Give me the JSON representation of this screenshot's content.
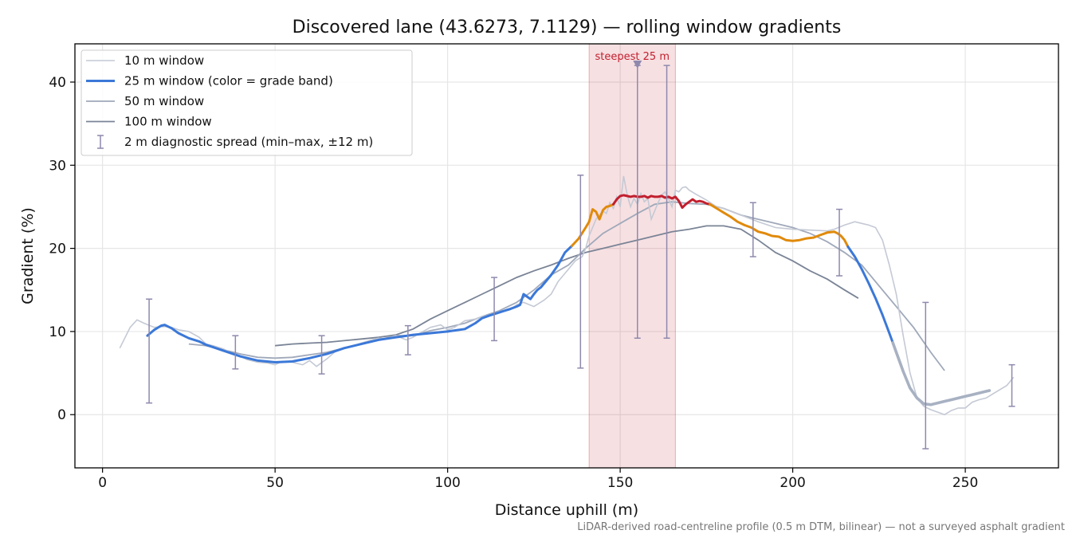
{
  "chart_data": {
    "type": "line",
    "title": "Discovered lane (43.6273, 7.1129) — rolling window gradients",
    "xlabel": "Distance uphill (m)",
    "ylabel": "Gradient (%)",
    "xlim": [
      -8,
      277
    ],
    "ylim": [
      -6.4,
      44.6
    ],
    "xticks": [
      0,
      50,
      100,
      150,
      200,
      250
    ],
    "yticks": [
      0,
      10,
      20,
      30,
      40
    ],
    "grid": true,
    "legend_position": "top-left",
    "footnote": "LiDAR-derived road-centreline profile (0.5 m DTM, bilinear) — not a surveyed asphalt gradient",
    "highlight": {
      "x0": 141,
      "x1": 166,
      "label": "steepest 25 m",
      "color": "#c9303a",
      "marker_x": 155,
      "marker_y": 42.2
    },
    "series": [
      {
        "name": "10 m window",
        "color": "#c4c9d4",
        "x": [
          5,
          8,
          10,
          12,
          15,
          18,
          20,
          22,
          25,
          28,
          30,
          32,
          35,
          38,
          40,
          42,
          45,
          48,
          50,
          52,
          55,
          58,
          60,
          62,
          65,
          68,
          70,
          72,
          75,
          78,
          80,
          82,
          85,
          88,
          90,
          92,
          95,
          98,
          100,
          102,
          105,
          108,
          110,
          112,
          115,
          118,
          120,
          122,
          125,
          128,
          130,
          132,
          135,
          137,
          139,
          140,
          141,
          142,
          143,
          144,
          145,
          146,
          147,
          148,
          149,
          150,
          151,
          152,
          153,
          154,
          155,
          156,
          157,
          158,
          159,
          160,
          161,
          162,
          163,
          164,
          165,
          166,
          167,
          168,
          169,
          170,
          172,
          175,
          178,
          180,
          185,
          190,
          195,
          200,
          205,
          210,
          212,
          215,
          218,
          220,
          222,
          224,
          226,
          228,
          230,
          232,
          234,
          236,
          238,
          240,
          242,
          244,
          246,
          248,
          250,
          252,
          254,
          256,
          258,
          260,
          262,
          264
        ],
        "values": [
          8.0,
          10.5,
          11.4,
          11.0,
          10.5,
          10.6,
          10.5,
          10.2,
          10.0,
          9.3,
          8.5,
          8.3,
          7.9,
          7.3,
          7.0,
          6.6,
          6.3,
          6.2,
          6.0,
          6.4,
          6.3,
          6.0,
          6.5,
          5.8,
          6.7,
          7.8,
          8.0,
          8.2,
          8.6,
          9.0,
          9.2,
          9.1,
          9.5,
          9.0,
          9.3,
          9.8,
          10.5,
          10.8,
          10.2,
          10.5,
          11.3,
          11.5,
          11.8,
          12.0,
          12.4,
          12.6,
          13.2,
          13.5,
          13.0,
          13.8,
          14.5,
          16.0,
          17.5,
          18.5,
          19.0,
          20.0,
          21.5,
          22.5,
          23.5,
          24.0,
          24.5,
          24.2,
          25.5,
          24.8,
          26.2,
          25.0,
          28.7,
          26.5,
          25.0,
          26.0,
          25.3,
          26.6,
          25.6,
          26.0,
          23.5,
          24.5,
          25.5,
          26.4,
          26.8,
          26.0,
          25.0,
          27.0,
          26.8,
          27.3,
          27.4,
          27.0,
          26.5,
          25.8,
          25.0,
          24.8,
          24.0,
          23.2,
          22.5,
          22.3,
          22.2,
          22.1,
          22.3,
          22.8,
          23.2,
          23.0,
          22.8,
          22.5,
          21.0,
          18.0,
          14.5,
          9.5,
          5.0,
          2.0,
          1.0,
          0.6,
          0.3,
          0.0,
          0.5,
          0.8,
          0.8,
          1.5,
          1.8,
          2.0,
          2.5,
          3.0,
          3.5,
          4.5
        ]
      },
      {
        "name": "25 m window (color = grade band)",
        "color": "#3b78d8",
        "x": [
          13,
          15,
          17,
          18,
          20,
          22,
          25,
          28,
          30,
          35,
          40,
          45,
          50,
          55,
          60,
          65,
          70,
          75,
          80,
          85,
          90,
          95,
          100,
          105,
          108,
          110,
          112,
          115,
          118,
          120,
          121,
          122,
          123,
          124,
          125,
          126,
          127,
          128,
          130,
          132,
          134,
          136,
          138,
          140,
          141,
          142,
          143,
          144,
          145,
          146,
          147,
          148,
          149,
          150,
          151,
          152,
          153,
          154,
          155,
          156,
          157,
          158,
          159,
          160,
          161,
          162,
          163,
          164,
          165,
          166,
          167,
          168,
          169,
          170,
          171,
          172,
          173,
          174,
          175,
          176,
          178,
          180,
          182,
          184,
          186,
          188,
          190,
          192,
          194,
          196,
          198,
          200,
          202,
          204,
          206,
          208,
          210,
          212,
          213,
          214,
          215,
          216,
          218,
          220,
          222,
          224,
          226,
          228,
          230,
          232,
          234,
          236,
          238,
          240,
          242,
          244,
          246,
          248,
          250,
          252,
          254,
          256,
          257
        ],
        "values": [
          9.5,
          10.2,
          10.7,
          10.8,
          10.4,
          9.8,
          9.2,
          8.8,
          8.4,
          7.7,
          7.0,
          6.5,
          6.3,
          6.4,
          6.8,
          7.3,
          8.0,
          8.5,
          9.0,
          9.3,
          9.6,
          9.8,
          10.0,
          10.3,
          11.0,
          11.6,
          11.9,
          12.3,
          12.7,
          13.0,
          13.2,
          14.5,
          14.2,
          13.9,
          14.5,
          15.0,
          15.3,
          15.8,
          16.8,
          18.0,
          19.5,
          20.3,
          21.2,
          22.5,
          23.2,
          24.7,
          24.4,
          23.5,
          24.6,
          25.0,
          25.1,
          25.3,
          25.9,
          26.3,
          26.4,
          26.3,
          26.2,
          26.3,
          26.2,
          26.2,
          26.3,
          26.1,
          26.3,
          26.2,
          26.2,
          26.3,
          26.1,
          26.2,
          26.0,
          26.2,
          25.7,
          24.9,
          25.3,
          25.6,
          25.9,
          25.6,
          25.7,
          25.6,
          25.4,
          25.3,
          24.8,
          24.3,
          23.8,
          23.2,
          22.8,
          22.5,
          22.0,
          21.8,
          21.5,
          21.4,
          21.0,
          20.9,
          21.0,
          21.2,
          21.3,
          21.6,
          21.9,
          22.0,
          21.8,
          21.5,
          21.0,
          20.2,
          19.0,
          17.5,
          15.8,
          14.0,
          12.0,
          9.8,
          7.5,
          5.2,
          3.2,
          2.0,
          1.3,
          1.2,
          1.4,
          1.6,
          1.8,
          2.0,
          2.2,
          2.4,
          2.6,
          2.8,
          2.9
        ],
        "segments": [
          {
            "band": "blue",
            "color": "#3b78d8",
            "x0": 13,
            "x1": 100
          },
          {
            "band": "blue",
            "color": "#3b78d8",
            "x0": 100,
            "x1": 136
          },
          {
            "band": "orange",
            "color": "#e08a0b",
            "x0": 136,
            "x1": 148
          },
          {
            "band": "red",
            "color": "#c21f2e",
            "x0": 148,
            "x1": 176
          },
          {
            "band": "orange",
            "color": "#e08a0b",
            "x0": 176,
            "x1": 216
          },
          {
            "band": "blue",
            "color": "#3b78d8",
            "x0": 216,
            "x1": 229
          },
          {
            "band": "grey",
            "color": "#a7b1c2",
            "x0": 229,
            "x1": 257
          }
        ]
      },
      {
        "name": "50 m window",
        "color": "#a0a9ba",
        "x": [
          25,
          30,
          35,
          40,
          45,
          50,
          55,
          60,
          65,
          70,
          75,
          80,
          85,
          90,
          95,
          100,
          105,
          110,
          115,
          120,
          125,
          130,
          135,
          140,
          145,
          150,
          155,
          160,
          165,
          170,
          175,
          180,
          185,
          190,
          195,
          200,
          205,
          210,
          215,
          220,
          225,
          230,
          235,
          240,
          244
        ],
        "values": [
          8.5,
          8.3,
          7.8,
          7.3,
          6.9,
          6.8,
          6.9,
          7.2,
          7.5,
          8.0,
          8.5,
          9.0,
          9.5,
          9.5,
          10.1,
          10.5,
          11.0,
          11.8,
          12.5,
          13.5,
          15.0,
          16.8,
          18.0,
          20.0,
          21.8,
          23.0,
          24.2,
          25.3,
          25.6,
          25.4,
          25.3,
          24.8,
          24.0,
          23.5,
          23.0,
          22.5,
          21.8,
          20.8,
          19.5,
          18.0,
          15.5,
          13.0,
          10.5,
          7.5,
          5.3
        ]
      },
      {
        "name": "100 m window",
        "color": "#7a8496",
        "x": [
          50,
          55,
          60,
          65,
          70,
          75,
          80,
          85,
          90,
          95,
          100,
          105,
          110,
          115,
          120,
          125,
          130,
          135,
          140,
          145,
          150,
          155,
          160,
          165,
          170,
          175,
          180,
          185,
          190,
          195,
          200,
          205,
          210,
          215,
          219
        ],
        "values": [
          8.3,
          8.5,
          8.6,
          8.7,
          8.9,
          9.1,
          9.3,
          9.6,
          10.3,
          11.5,
          12.5,
          13.5,
          14.5,
          15.5,
          16.5,
          17.3,
          18.0,
          18.8,
          19.5,
          20.0,
          20.5,
          21.0,
          21.5,
          22.0,
          22.3,
          22.7,
          22.7,
          22.3,
          21.0,
          19.5,
          18.5,
          17.3,
          16.3,
          15.0,
          14.0
        ]
      }
    ],
    "errorbars": {
      "name": "2 m diagnostic spread (min–max, ±12 m)",
      "color": "#8e89ad",
      "points": [
        {
          "x": 13.5,
          "min": 1.4,
          "max": 13.9
        },
        {
          "x": 38.5,
          "min": 5.5,
          "max": 9.5
        },
        {
          "x": 63.5,
          "min": 4.9,
          "max": 9.5
        },
        {
          "x": 88.5,
          "min": 7.2,
          "max": 10.7
        },
        {
          "x": 113.5,
          "min": 8.9,
          "max": 16.5
        },
        {
          "x": 138.5,
          "min": 5.6,
          "max": 28.8
        },
        {
          "x": 155,
          "min": 9.2,
          "max": 42.0
        },
        {
          "x": 163.5,
          "min": 9.2,
          "max": 42.0
        },
        {
          "x": 188.5,
          "min": 19.0,
          "max": 25.5
        },
        {
          "x": 213.5,
          "min": 16.7,
          "max": 24.7
        },
        {
          "x": 238.5,
          "min": -4.1,
          "max": 13.5
        },
        {
          "x": 263.5,
          "min": 1.0,
          "max": 6.0
        }
      ]
    }
  }
}
